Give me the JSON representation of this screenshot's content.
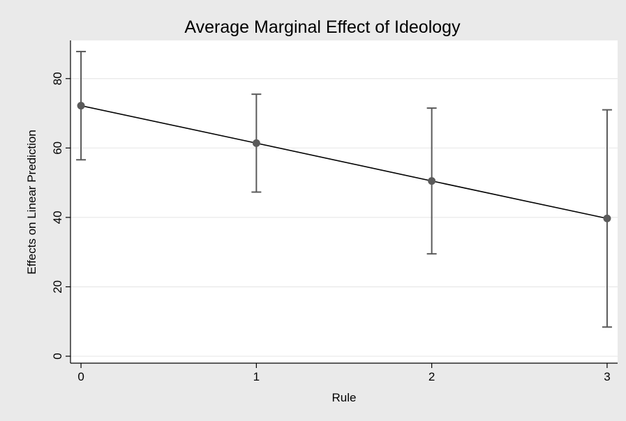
{
  "chart_data": {
    "type": "line",
    "title": "Average Marginal Effect of Ideology",
    "xlabel": "Rule",
    "ylabel": "Effects on Linear Prediction",
    "x": [
      0,
      1,
      2,
      3
    ],
    "xticks": [
      "0",
      "1",
      "2",
      "3"
    ],
    "yticks": [
      "0",
      "20",
      "40",
      "60",
      "80"
    ],
    "xlim": [
      -0.06,
      3.06
    ],
    "ylim": [
      -2,
      91
    ],
    "grid": true,
    "series": [
      {
        "values": [
          72.2,
          61.4,
          50.5,
          39.7
        ],
        "ci_lower": [
          56.6,
          47.3,
          29.5,
          8.4
        ],
        "ci_upper": [
          87.8,
          75.5,
          71.5,
          71.0
        ]
      }
    ],
    "colors": {
      "outer_background": "#eaeaea",
      "plot_background": "#ffffff",
      "gridline": "#e8e8e8",
      "line": "#000000",
      "marker": "#5a5a5a",
      "errorbar": "#5a5a5a"
    }
  }
}
